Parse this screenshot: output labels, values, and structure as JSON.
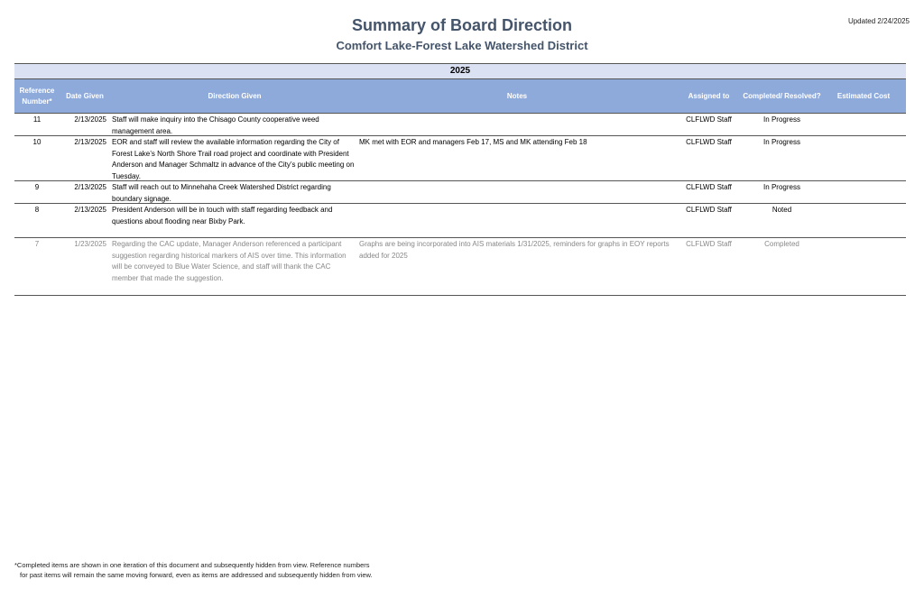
{
  "header": {
    "title": "Summary of Board Direction",
    "subtitle": "Comfort Lake-Forest Lake Watershed District",
    "updated": "Updated 2/24/2025"
  },
  "table": {
    "year": "2025",
    "columns": [
      "Reference Number*",
      "Date Given",
      "Direction Given",
      "Notes",
      "Assigned to",
      "Completed/ Resolved?",
      "Estimated Cost"
    ],
    "rows": [
      {
        "ref": "11",
        "date": "2/13/2025",
        "direction": "Staff will make inquiry into the Chisago County cooperative weed management area.",
        "notes": "",
        "assigned": "CLFLWD Staff",
        "status": "In Progress",
        "cost": ""
      },
      {
        "ref": "10",
        "date": "2/13/2025",
        "direction": "EOR and staff will review the available information regarding the City of Forest Lake’s North Shore Trail road project and coordinate with President Anderson and Manager Schmaltz in advance of the City’s public meeting on Tuesday.",
        "notes": "MK met with EOR and managers Feb 17, MS and MK attending Feb 18",
        "assigned": "CLFLWD Staff",
        "status": "In Progress",
        "cost": ""
      },
      {
        "ref": "9",
        "date": "2/13/2025",
        "direction": "Staff will reach out to Minnehaha Creek Watershed District regarding boundary signage.",
        "notes": "",
        "assigned": "CLFLWD Staff",
        "status": "In Progress",
        "cost": ""
      },
      {
        "ref": "8",
        "date": "2/13/2025",
        "direction": "President Anderson will be in touch with staff regarding feedback and questions about flooding near Bixby Park.",
        "notes": "",
        "assigned": "CLFLWD Staff",
        "status": "Noted",
        "cost": ""
      },
      {
        "ref": "7",
        "date": "1/23/2025",
        "direction": "Regarding the CAC update, Manager Anderson referenced a participant suggestion regarding historical markers of AIS over time. This information will be conveyed to Blue Water Science, and staff will thank the CAC member that made the suggestion.",
        "notes": "Graphs are being incorporated into AIS materials 1/31/2025, reminders for graphs in EOY reports added for 2025",
        "assigned": "CLFLWD Staff",
        "status": "Completed",
        "cost": ""
      }
    ]
  },
  "footnote": {
    "line1": "*Completed items are shown in one iteration of this document and subsequently hidden from view. Reference numbers",
    "line2": "for past items will remain the same moving forward, even as items are addressed and subsequently hidden from view."
  },
  "colors": {
    "title": "#44546a",
    "header_bg": "#8eaadb",
    "year_bg": "#d9e1f2",
    "completed_text": "#888888"
  }
}
